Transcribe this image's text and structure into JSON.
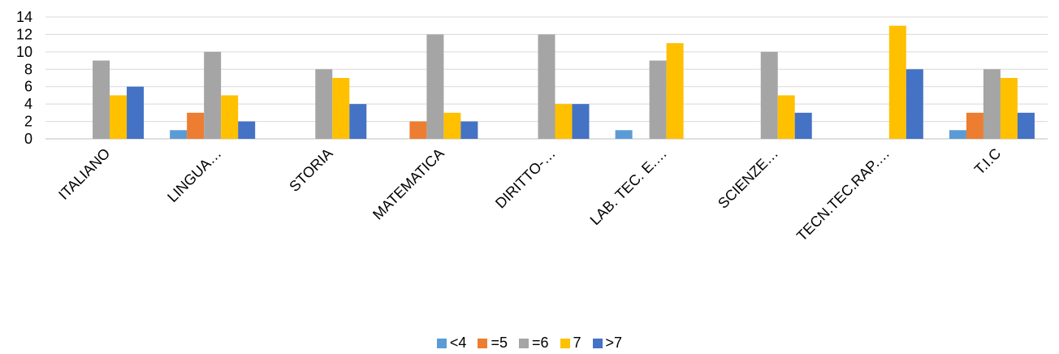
{
  "chart_data": {
    "type": "bar",
    "categories": [
      "ITALIANO",
      "LINGUA…",
      "STORIA",
      "MATEMATICA",
      "DIRITTO-…",
      "LAB. TEC. E.…",
      "SCIENZE…",
      "TECN.TEC.RAP.…",
      "T.I.C"
    ],
    "series": [
      {
        "name": "<4",
        "color": "#5B9BD5",
        "values": [
          0,
          1,
          0,
          0,
          0,
          1,
          0,
          0,
          1
        ]
      },
      {
        "name": "=5",
        "color": "#ED7D31",
        "values": [
          0,
          3,
          0,
          2,
          0,
          0,
          0,
          0,
          3
        ]
      },
      {
        "name": "=6",
        "color": "#A5A5A5",
        "values": [
          9,
          10,
          8,
          12,
          12,
          9,
          10,
          0,
          8
        ]
      },
      {
        "name": "7",
        "color": "#FFC000",
        "values": [
          5,
          5,
          7,
          3,
          4,
          11,
          5,
          13,
          7
        ]
      },
      {
        "name": ">7",
        "color": "#4472C4",
        "values": [
          6,
          2,
          4,
          2,
          4,
          0,
          3,
          8,
          3
        ]
      }
    ],
    "yticks": [
      "0",
      "2",
      "4",
      "6",
      "8",
      "10",
      "12",
      "14"
    ],
    "ylim": [
      0,
      14
    ],
    "grid": true,
    "legend_position": "bottom"
  }
}
